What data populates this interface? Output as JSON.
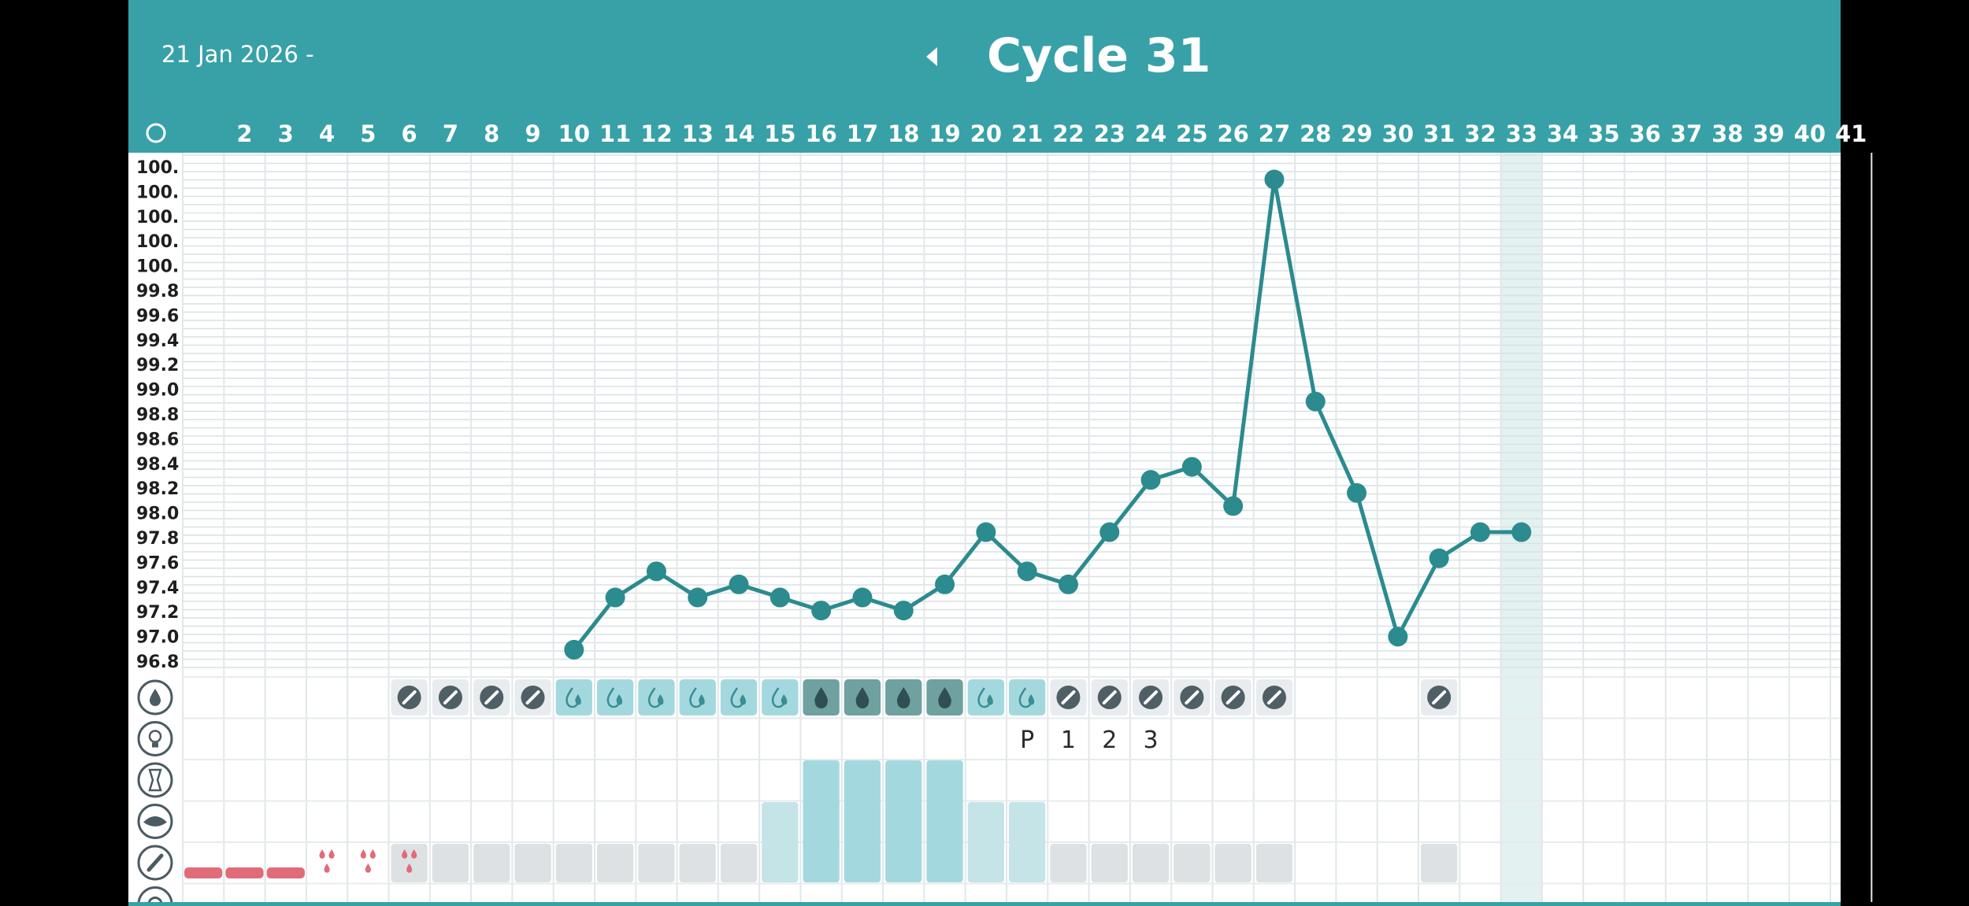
{
  "header": {
    "start_date": "21 Jan 2026 -",
    "title": "Cycle 31",
    "prev_icon": "chevron-left-icon"
  },
  "colors": {
    "teal": "#37a1a7",
    "line": "#2b8b8f",
    "fertile_light": "#a3d9de",
    "fertile_dark": "#6fa1a0",
    "dry_badge": "#4f5f66",
    "bleeding": "#e16b78",
    "today_column": "#e4f1f1"
  },
  "days": [
    "○",
    "2",
    "3",
    "4",
    "5",
    "6",
    "7",
    "8",
    "9",
    "10",
    "11",
    "12",
    "13",
    "14",
    "15",
    "16",
    "17",
    "18",
    "19",
    "20",
    "21",
    "22",
    "23",
    "24",
    "25",
    "26",
    "27",
    "28",
    "29",
    "30",
    "31",
    "32",
    "33",
    "34",
    "35",
    "36",
    "37",
    "38",
    "39",
    "40",
    "41"
  ],
  "today_day": 33,
  "y_axis_labels": [
    "100.",
    "100.",
    "100.",
    "100.",
    "100.",
    "99.8",
    "99.6",
    "99.4",
    "99.2",
    "99.0",
    "98.8",
    "98.6",
    "98.4",
    "98.2",
    "98.0",
    "97.8",
    "97.6",
    "97.4",
    "97.2",
    "97.0",
    "96.8"
  ],
  "row_icons": [
    "drop-icon",
    "lightbulb-icon",
    "cervix-icon",
    "lips-icon",
    "pencil-icon",
    "target-icon"
  ],
  "chart_data": {
    "type": "line",
    "series": [
      {
        "points": [
          {
            "day": 10,
            "temp": 96.9
          },
          {
            "day": 11,
            "temp": 97.3
          },
          {
            "day": 12,
            "temp": 97.5
          },
          {
            "day": 13,
            "temp": 97.3
          },
          {
            "day": 14,
            "temp": 97.4
          },
          {
            "day": 15,
            "temp": 97.3
          },
          {
            "day": 16,
            "temp": 97.2
          },
          {
            "day": 17,
            "temp": 97.3
          },
          {
            "day": 18,
            "temp": 97.2
          },
          {
            "day": 19,
            "temp": 97.4
          },
          {
            "day": 20,
            "temp": 97.8
          },
          {
            "day": 21,
            "temp": 97.5
          },
          {
            "day": 22,
            "temp": 97.4
          },
          {
            "day": 23,
            "temp": 97.8
          },
          {
            "day": 24,
            "temp": 98.2
          },
          {
            "day": 25,
            "temp": 98.3
          },
          {
            "day": 26,
            "temp": 98.0
          },
          {
            "day": 27,
            "temp": 100.5
          },
          {
            "day": 28,
            "temp": 98.8
          },
          {
            "day": 29,
            "temp": 98.1
          },
          {
            "day": 30,
            "temp": 97.0
          },
          {
            "day": 31,
            "temp": 97.6
          },
          {
            "day": 32,
            "temp": 97.8
          },
          {
            "day": 33,
            "temp": 97.8
          }
        ]
      }
    ],
    "x_range": [
      1,
      41
    ],
    "y_range": [
      96.7,
      100.7
    ],
    "grid": true
  },
  "mucus": [
    {
      "day": 6,
      "type": "dry"
    },
    {
      "day": 7,
      "type": "dry"
    },
    {
      "day": 8,
      "type": "dry"
    },
    {
      "day": 9,
      "type": "dry"
    },
    {
      "day": 10,
      "type": "moist"
    },
    {
      "day": 11,
      "type": "moist"
    },
    {
      "day": 12,
      "type": "moist"
    },
    {
      "day": 13,
      "type": "moist"
    },
    {
      "day": 14,
      "type": "moist"
    },
    {
      "day": 15,
      "type": "moist"
    },
    {
      "day": 16,
      "type": "wet"
    },
    {
      "day": 17,
      "type": "wet"
    },
    {
      "day": 18,
      "type": "wet"
    },
    {
      "day": 19,
      "type": "wet"
    },
    {
      "day": 20,
      "type": "moist"
    },
    {
      "day": 21,
      "type": "moist"
    },
    {
      "day": 22,
      "type": "dry"
    },
    {
      "day": 23,
      "type": "dry"
    },
    {
      "day": 24,
      "type": "dry"
    },
    {
      "day": 25,
      "type": "dry"
    },
    {
      "day": 26,
      "type": "dry"
    },
    {
      "day": 27,
      "type": "dry"
    },
    {
      "day": 31,
      "type": "dry"
    }
  ],
  "peak_labels": [
    {
      "day": 21,
      "text": "P"
    },
    {
      "day": 22,
      "text": "1"
    },
    {
      "day": 23,
      "text": "2"
    },
    {
      "day": 24,
      "text": "3"
    }
  ],
  "mucus_bars": [
    {
      "day": 6,
      "level": 0
    },
    {
      "day": 7,
      "level": 0
    },
    {
      "day": 8,
      "level": 0
    },
    {
      "day": 9,
      "level": 0
    },
    {
      "day": 10,
      "level": 0
    },
    {
      "day": 11,
      "level": 0
    },
    {
      "day": 12,
      "level": 0
    },
    {
      "day": 13,
      "level": 0
    },
    {
      "day": 14,
      "level": 0
    },
    {
      "day": 15,
      "level": 1
    },
    {
      "day": 16,
      "level": 3
    },
    {
      "day": 17,
      "level": 3
    },
    {
      "day": 18,
      "level": 3
    },
    {
      "day": 19,
      "level": 3
    },
    {
      "day": 20,
      "level": 1
    },
    {
      "day": 21,
      "level": 1
    },
    {
      "day": 22,
      "level": 0
    },
    {
      "day": 23,
      "level": 0
    },
    {
      "day": 24,
      "level": 0
    },
    {
      "day": 25,
      "level": 0
    },
    {
      "day": 26,
      "level": 0
    },
    {
      "day": 27,
      "level": 0
    },
    {
      "day": 31,
      "level": 0
    }
  ],
  "bleeding": [
    {
      "day": 1,
      "type": "bar"
    },
    {
      "day": 2,
      "type": "bar"
    },
    {
      "day": 3,
      "type": "bar"
    },
    {
      "day": 4,
      "type": "drops"
    },
    {
      "day": 5,
      "type": "drops"
    },
    {
      "day": 6,
      "type": "drops"
    }
  ]
}
